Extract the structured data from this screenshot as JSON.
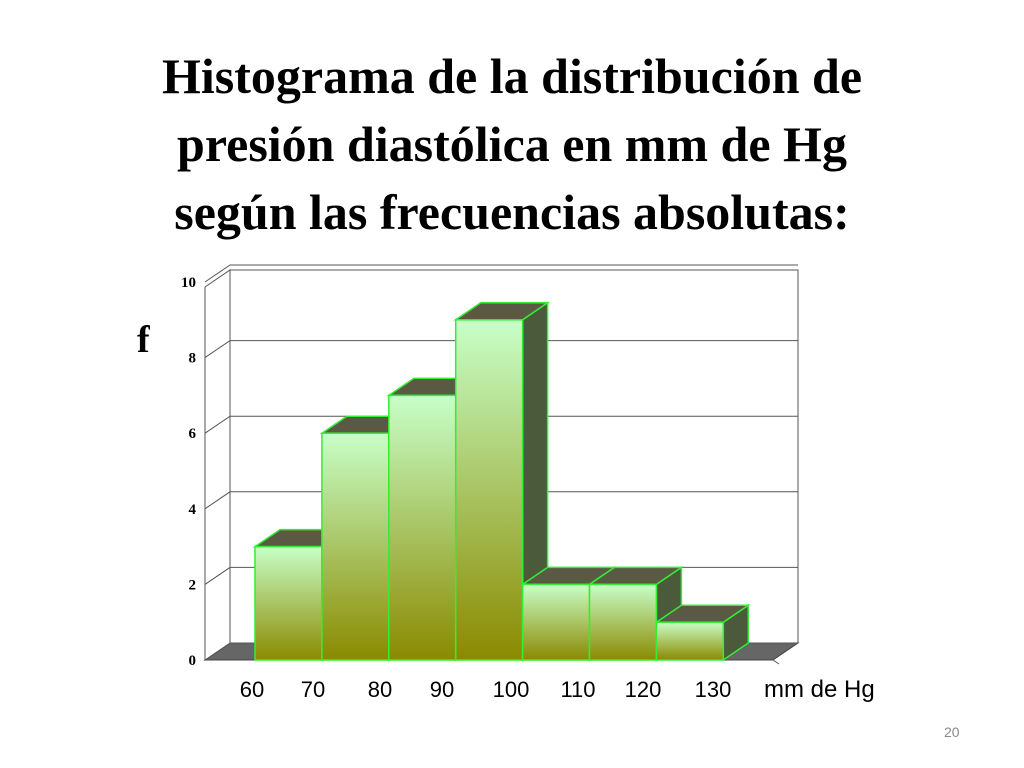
{
  "title_lines": [
    "Histograma de la distribución de",
    "presión diastólica en mm de Hg",
    "según las frecuencias absolutas:"
  ],
  "slide_number": "20",
  "chart_data": {
    "type": "bar",
    "title": "",
    "ylabel": "f",
    "xlabel": "mm de Hg",
    "x_tick_labels": [
      "60",
      "70",
      "80",
      "90",
      "100",
      "110",
      "120",
      "130"
    ],
    "bins": [
      {
        "from": 60,
        "to": 70,
        "value": 3
      },
      {
        "from": 70,
        "to": 80,
        "value": 6
      },
      {
        "from": 80,
        "to": 90,
        "value": 7
      },
      {
        "from": 90,
        "to": 100,
        "value": 9
      },
      {
        "from": 100,
        "to": 110,
        "value": 2
      },
      {
        "from": 110,
        "to": 120,
        "value": 2
      },
      {
        "from": 120,
        "to": 130,
        "value": 1
      }
    ],
    "ylim": [
      0,
      10
    ],
    "y_ticks": [
      0,
      2,
      4,
      6,
      8,
      10
    ],
    "grid": true,
    "style": "3d",
    "colors": {
      "bar_top_face": "#c8ffc8",
      "bar_bottom_face": "#8a8a00",
      "bar_outline": "#33ee33",
      "bar_side": "#4a5a3a",
      "bar_cap": "#5a5a44",
      "floor": "#666666"
    }
  }
}
